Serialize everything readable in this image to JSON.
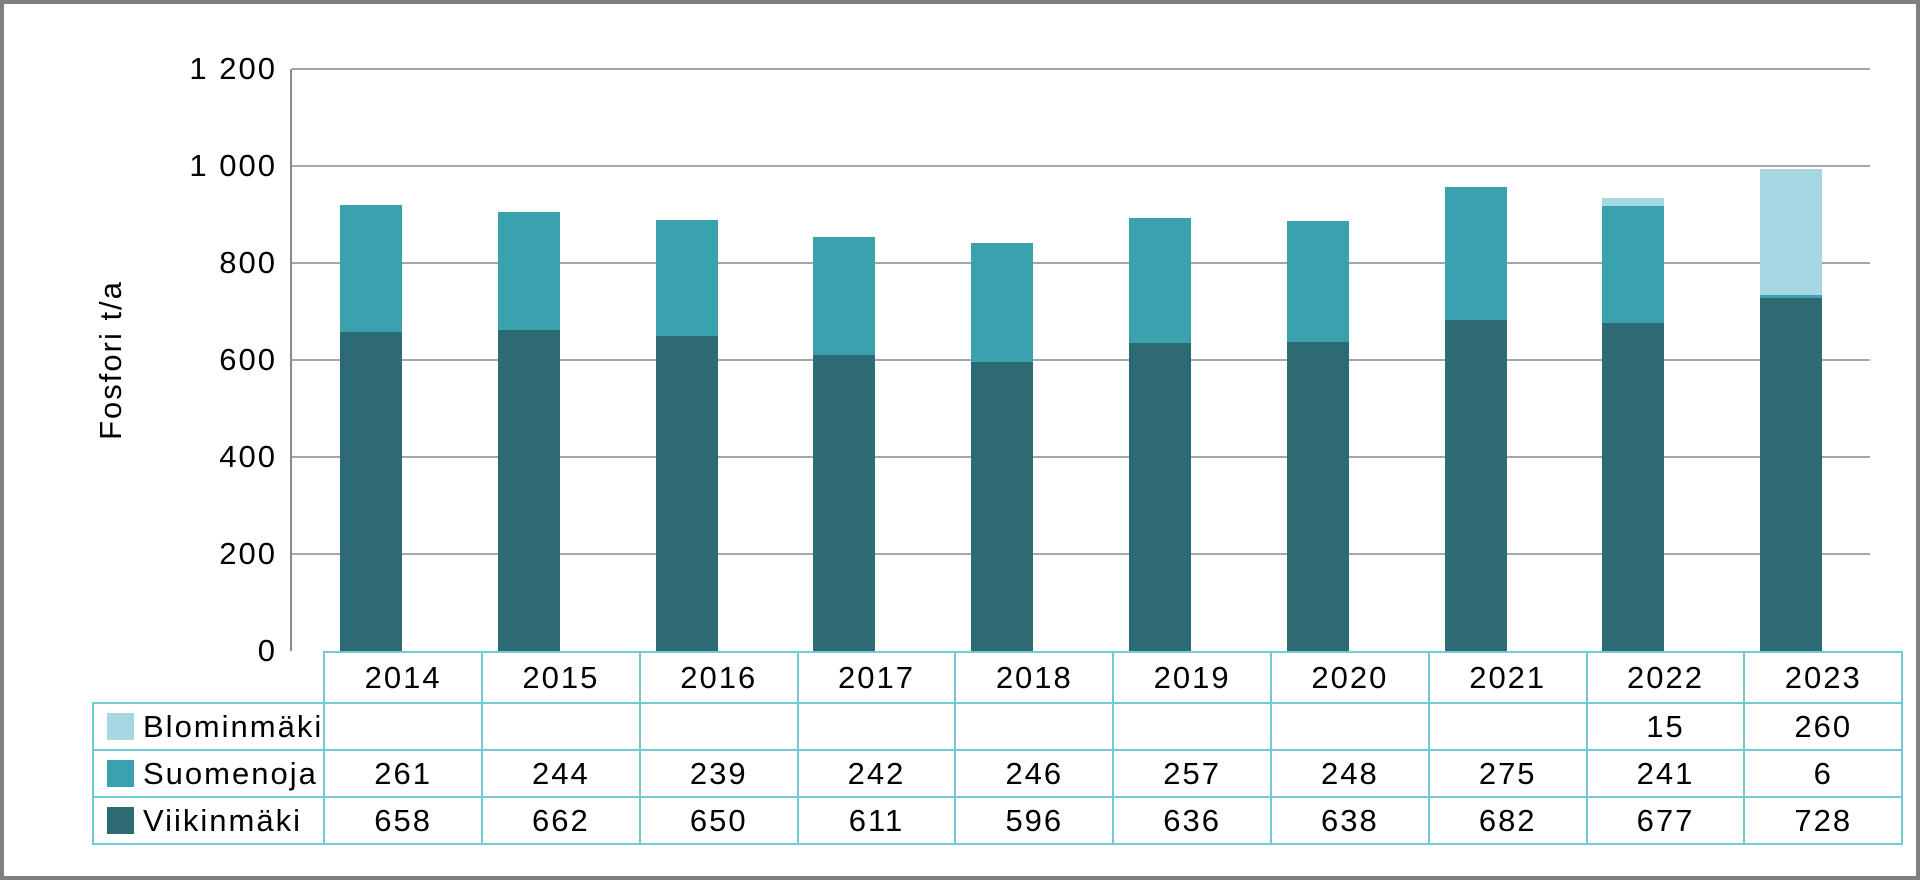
{
  "chart_data": {
    "type": "bar",
    "stacked": true,
    "title": "",
    "ylabel": "Fosfori t/a",
    "xlabel": "",
    "categories": [
      "2014",
      "2015",
      "2016",
      "2017",
      "2018",
      "2019",
      "2020",
      "2021",
      "2022",
      "2023"
    ],
    "series": [
      {
        "name": "Blominmäki",
        "color": "#A7D8E2",
        "values": [
          null,
          null,
          null,
          null,
          null,
          null,
          null,
          null,
          15,
          260
        ]
      },
      {
        "name": "Suomenoja",
        "color": "#3AA2AF",
        "values": [
          261,
          244,
          239,
          242,
          246,
          257,
          248,
          275,
          241,
          6
        ]
      },
      {
        "name": "Viikinmäki",
        "color": "#2C6A74",
        "values": [
          658,
          662,
          650,
          611,
          596,
          636,
          638,
          682,
          677,
          728
        ]
      }
    ],
    "stack_order_bottom_to_top": [
      "Viikinmäki",
      "Suomenoja",
      "Blominmäki"
    ],
    "ylim": [
      0,
      1200
    ],
    "ytick_interval": 200,
    "ytick_labels": [
      "0",
      "200",
      "400",
      "600",
      "800",
      "1 000",
      "1 200"
    ],
    "grid": true,
    "legend_position": "table-rows-left",
    "values_table_shown": true
  },
  "colors": {
    "table_border": "#6FCBD6",
    "gridline": "#A6A6A6",
    "axis_line": "#898989",
    "frame": "#7F7F7F",
    "background": "#FFFFFF",
    "text": "#000000"
  }
}
